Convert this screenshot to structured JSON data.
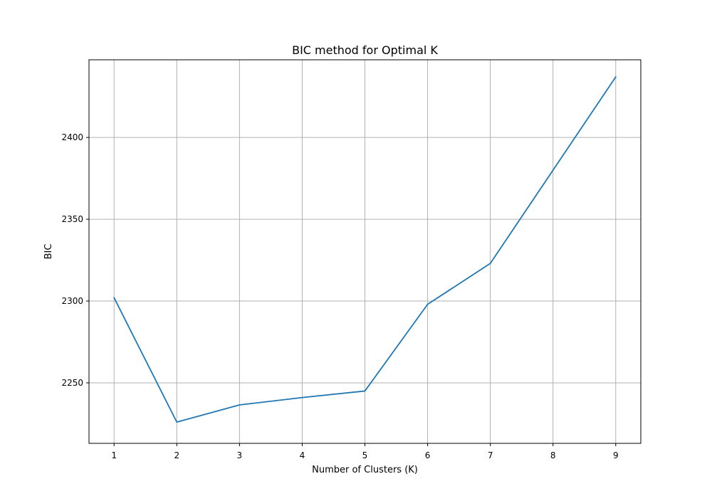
{
  "chart_data": {
    "type": "line",
    "title": "BIC method for Optimal K",
    "xlabel": "Number of Clusters (K)",
    "ylabel": "BIC",
    "x": [
      1,
      2,
      3,
      4,
      5,
      6,
      7,
      8,
      9
    ],
    "series": [
      {
        "values": [
          2302,
          2226,
          2236.5,
          2241,
          2245,
          2298,
          2323,
          2380,
          2437
        ],
        "color": "#1f77b4"
      }
    ],
    "xlim": [
      0.6,
      9.4
    ],
    "ylim": [
      2213,
      2447.5
    ],
    "xticks": [
      1,
      2,
      3,
      4,
      5,
      6,
      7,
      8,
      9
    ],
    "yticks": [
      2250,
      2300,
      2350,
      2400
    ],
    "grid": true,
    "legend": "none"
  },
  "colors": {
    "line": "#1f77b4",
    "grid": "#b0b0b0",
    "axes": "#000000"
  }
}
